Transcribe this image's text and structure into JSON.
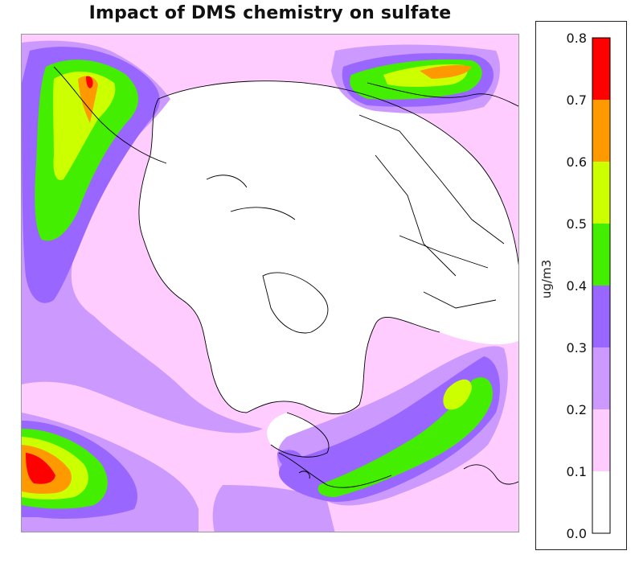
{
  "title": "Impact of DMS chemistry on sulfate",
  "colorbar": {
    "unit_label": "ug/m3",
    "ticks": [
      "0.0",
      "0.1",
      "0.2",
      "0.3",
      "0.4",
      "0.5",
      "0.6",
      "0.7",
      "0.8"
    ],
    "bins": [
      {
        "min": 0.0,
        "max": 0.1,
        "color": "#ffffff"
      },
      {
        "min": 0.1,
        "max": 0.2,
        "color": "#ffccff"
      },
      {
        "min": 0.2,
        "max": 0.3,
        "color": "#cc99ff"
      },
      {
        "min": 0.3,
        "max": 0.4,
        "color": "#9966ff"
      },
      {
        "min": 0.4,
        "max": 0.5,
        "color": "#44ee00"
      },
      {
        "min": 0.5,
        "max": 0.6,
        "color": "#ccff00"
      },
      {
        "min": 0.6,
        "max": 0.7,
        "color": "#ff9900"
      },
      {
        "min": 0.7,
        "max": 0.8,
        "color": "#ff0000"
      }
    ]
  },
  "map": {
    "projection": "polar stereographic (north)",
    "field": "sulfate concentration change",
    "background_color": "#ffffff",
    "coastline_color": "#000000"
  }
}
